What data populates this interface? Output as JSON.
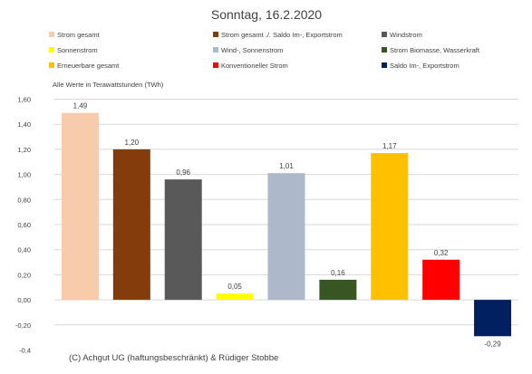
{
  "chart_data": {
    "type": "bar",
    "title": "Sonntag, 16.2.2020",
    "note": "Alle Werte in Terawattstunden (TWh)",
    "credit": "(C) Achgut UG (haftungsbeschränkt) & Rüdiger Stobbe",
    "categories": [
      "Strom gesamt",
      "Strom gesamt ./. Saldo Im-, Exportstrom",
      "Windstrom",
      "Sonnenstrom",
      "Wind-, Sonnenstrom",
      "Strom Biomasse, Wasserkraft",
      "Erneuerbare gesamt",
      "Konventioneller Strom",
      "Saldo Im-, Exportstrom"
    ],
    "values": [
      1.49,
      1.2,
      0.96,
      0.05,
      1.01,
      0.16,
      1.17,
      0.32,
      -0.29
    ],
    "value_labels": [
      "1,49",
      "1,20",
      "0,96",
      "0,05",
      "1,01",
      "0,16",
      "1,17",
      "0,32",
      "-0,29"
    ],
    "colors": [
      "#f8cbad",
      "#843c0c",
      "#595959",
      "#ffff00",
      "#adb9ca",
      "#375623",
      "#ffc000",
      "#ff0000",
      "#002060"
    ],
    "ylim": [
      -0.4,
      1.6
    ],
    "yticks": [
      "1,60",
      "1,40",
      "1,20",
      "1,00",
      "0,80",
      "0,60",
      "0,40",
      "0,20",
      "0,00",
      "-0,20",
      "-0,4"
    ],
    "ytick_values": [
      1.6,
      1.4,
      1.2,
      1.0,
      0.8,
      0.6,
      0.4,
      0.2,
      0.0,
      -0.2,
      -0.4
    ],
    "grid": true,
    "legend_position": "top"
  }
}
